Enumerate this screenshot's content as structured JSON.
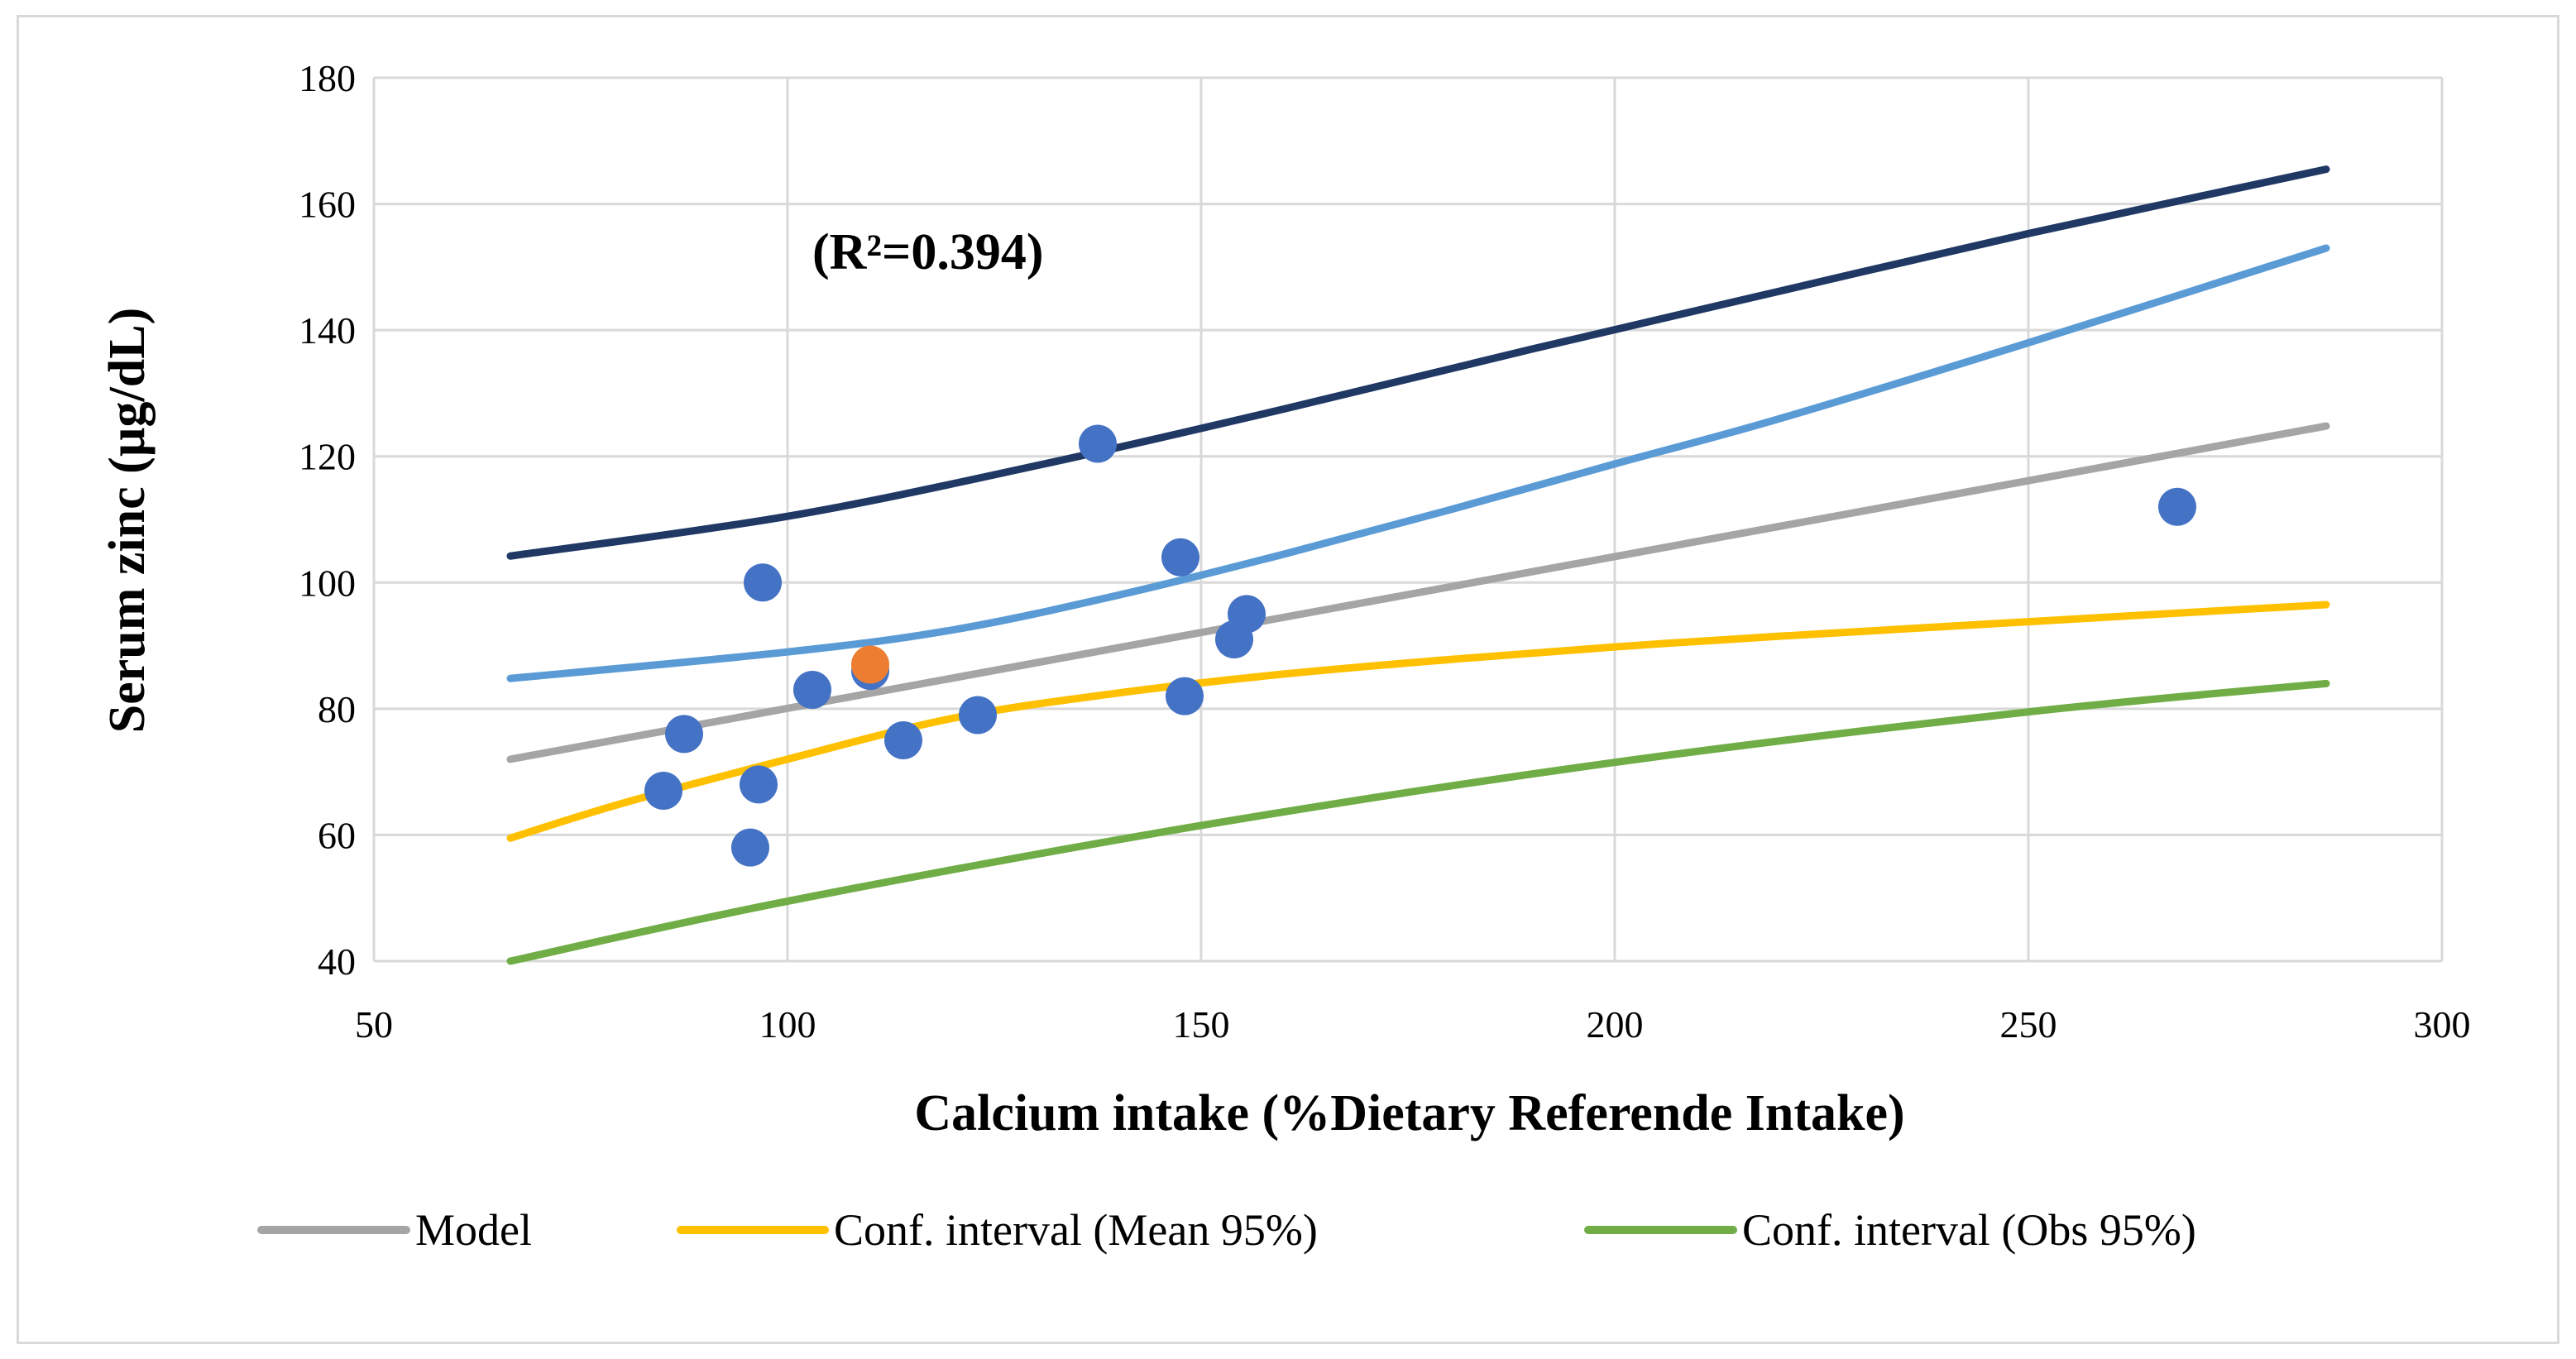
{
  "chart_data": {
    "type": "scatter",
    "annotation": "(R²=0.394)",
    "xlabel": "Calcium intake (%Dietary Referende Intake)",
    "ylabel": "Serum zinc (µg/dL)",
    "xlim": [
      50,
      300
    ],
    "ylim": [
      40,
      180
    ],
    "x_ticks": [
      50,
      100,
      150,
      200,
      250,
      300
    ],
    "y_ticks": [
      40,
      60,
      80,
      100,
      120,
      140,
      160,
      180
    ],
    "grid": true,
    "legend_position": "bottom",
    "points": [
      {
        "x": 85,
        "y": 67,
        "color": "#4472C4"
      },
      {
        "x": 87.5,
        "y": 76,
        "color": "#4472C4"
      },
      {
        "x": 95.5,
        "y": 58,
        "color": "#4472C4"
      },
      {
        "x": 96.5,
        "y": 68,
        "color": "#4472C4"
      },
      {
        "x": 97,
        "y": 100,
        "color": "#4472C4"
      },
      {
        "x": 103,
        "y": 83,
        "color": "#4472C4"
      },
      {
        "x": 110,
        "y": 86,
        "color": "#4472C4"
      },
      {
        "x": 114,
        "y": 75,
        "color": "#4472C4"
      },
      {
        "x": 123,
        "y": 79,
        "color": "#4472C4"
      },
      {
        "x": 137.5,
        "y": 122,
        "color": "#4472C4"
      },
      {
        "x": 147.5,
        "y": 104,
        "color": "#4472C4"
      },
      {
        "x": 148,
        "y": 82,
        "color": "#4472C4"
      },
      {
        "x": 154,
        "y": 91,
        "color": "#4472C4"
      },
      {
        "x": 155.5,
        "y": 95,
        "color": "#4472C4"
      },
      {
        "x": 268,
        "y": 112,
        "color": "#4472C4"
      },
      {
        "x": 110,
        "y": 87,
        "color": "#ED7D31"
      }
    ],
    "series": [
      {
        "name": "Conf. interval (Obs 95%) upper",
        "color": "#203864",
        "in_legend": false,
        "x": [
          66.5,
          100,
          130,
          160,
          190,
          220,
          250,
          286
        ],
        "y": [
          104.2,
          110.5,
          118.5,
          127.5,
          137.0,
          146.2,
          155.3,
          165.5
        ]
      },
      {
        "name": "Conf. interval (Mean 95%) upper",
        "color": "#5B9BD5",
        "in_legend": false,
        "x": [
          66.5,
          100,
          120,
          140,
          160,
          180,
          200,
          220,
          250,
          286
        ],
        "y": [
          84.8,
          89.0,
          92.5,
          98.0,
          104.5,
          111.5,
          118.8,
          126.0,
          138.0,
          153.0
        ]
      },
      {
        "name": "Model",
        "color": "#A5A5A5",
        "in_legend": true,
        "x": [
          66.5,
          286
        ],
        "y": [
          72.0,
          124.8
        ]
      },
      {
        "name": "Conf. interval (Mean 95%)",
        "color": "#FFC000",
        "in_legend": true,
        "x": [
          66.5,
          80,
          100,
          120,
          140,
          160,
          180,
          200,
          220,
          250,
          286
        ],
        "y": [
          59.5,
          65.0,
          72.0,
          78.5,
          82.5,
          85.5,
          87.8,
          89.8,
          91.5,
          93.8,
          96.5
        ]
      },
      {
        "name": "Conf. interval (Obs 95%)",
        "color": "#70AD47",
        "in_legend": true,
        "x": [
          66.5,
          100,
          150,
          200,
          250,
          286
        ],
        "y": [
          40.0,
          49.5,
          61.5,
          71.5,
          79.5,
          84.0
        ]
      }
    ],
    "legend": [
      {
        "label": "Model",
        "color": "#A5A5A5"
      },
      {
        "label": "Conf. interval (Mean 95%)",
        "color": "#FFC000"
      },
      {
        "label": "Conf. interval (Obs 95%)",
        "color": "#70AD47"
      }
    ]
  }
}
